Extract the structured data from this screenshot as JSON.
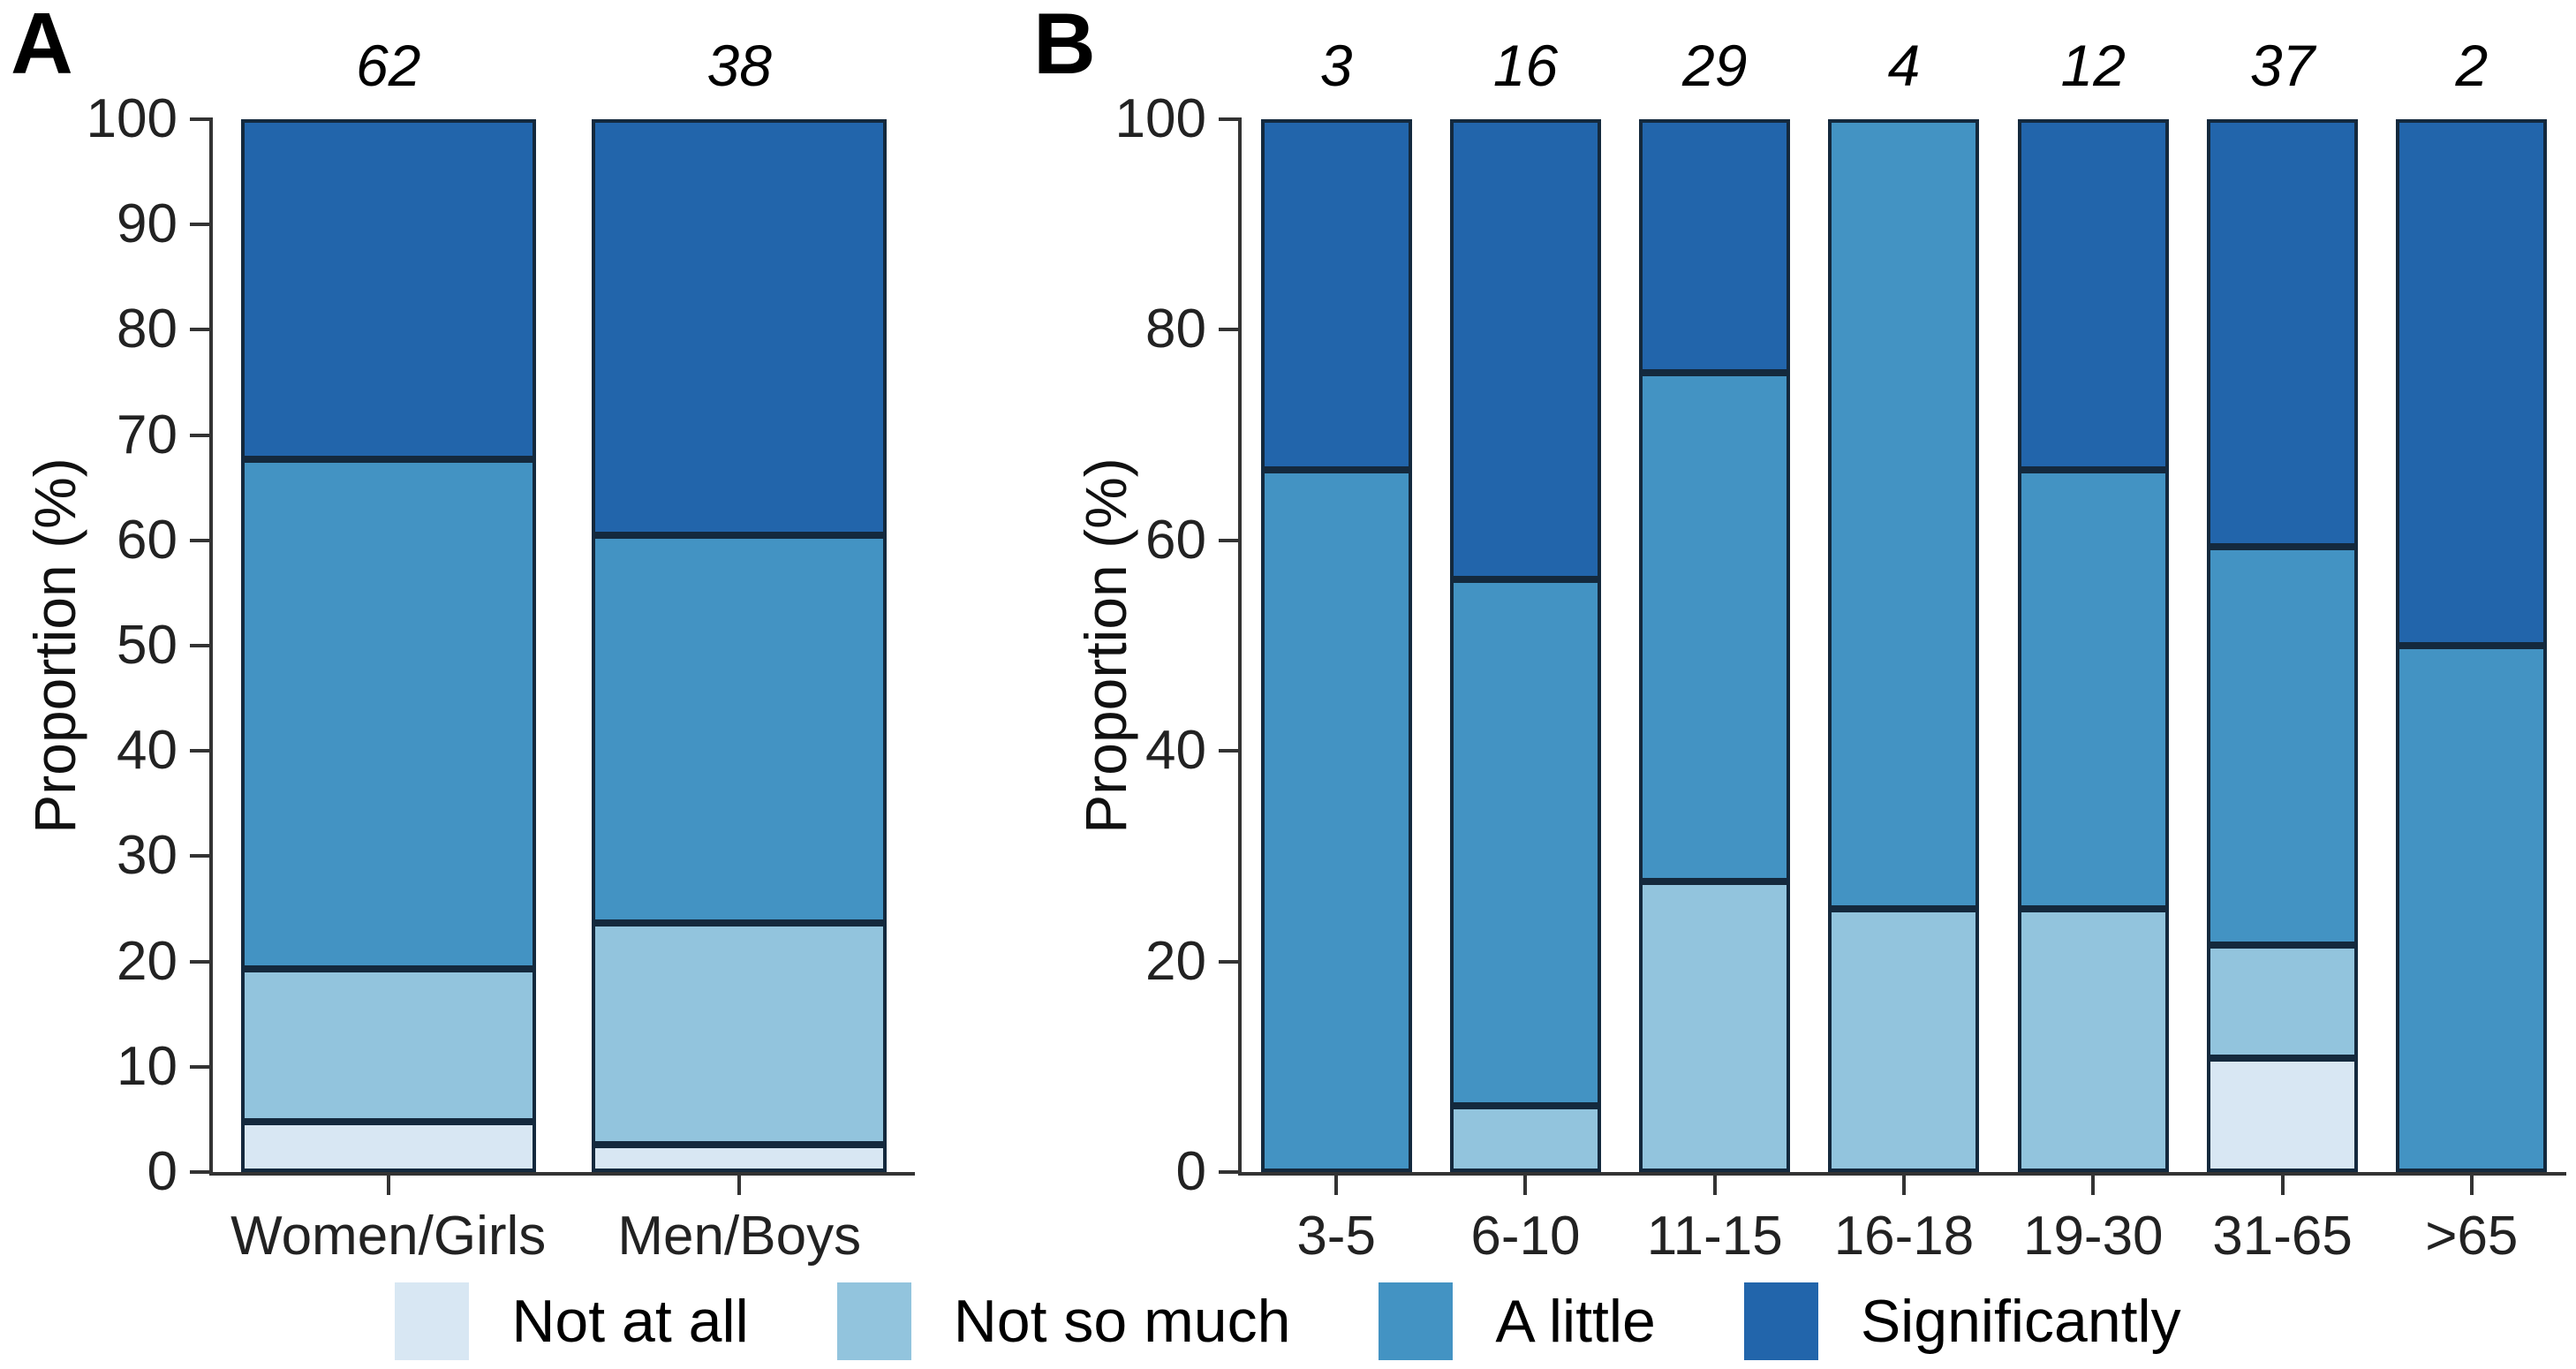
{
  "figure": {
    "background": "#ffffff"
  },
  "colors": {
    "segment_edge": "#14293d",
    "axis": "#333333",
    "not_at_all": "#d8e7f3",
    "not_so_much": "#92c4dd",
    "a_little": "#4393c3",
    "significantly": "#2265ab"
  },
  "legend": {
    "entries": [
      {
        "label": "Not at all",
        "color": "#d8e7f3"
      },
      {
        "label": "Not so much",
        "color": "#92c4dd"
      },
      {
        "label": "A little",
        "color": "#4393c3"
      },
      {
        "label": "Significantly",
        "color": "#2265ab"
      }
    ]
  },
  "chart_data": [
    {
      "type": "bar",
      "subtype": "stacked-percent",
      "panel_label": "A",
      "ylabel": "Proportion (%)",
      "ylim": [
        0,
        100
      ],
      "yticks": [
        0,
        10,
        20,
        30,
        40,
        50,
        60,
        70,
        80,
        90,
        100
      ],
      "grid": false,
      "legend_position": "bottom",
      "categories": [
        "Women/Girls",
        "Men/Boys"
      ],
      "n_labels": [
        "62",
        "38"
      ],
      "series": [
        {
          "name": "Not at all",
          "color": "#d8e7f3",
          "values": [
            4.8,
            2.6
          ]
        },
        {
          "name": "Not so much",
          "color": "#92c4dd",
          "values": [
            14.5,
            21.1
          ]
        },
        {
          "name": "A little",
          "color": "#4393c3",
          "values": [
            48.4,
            36.8
          ]
        },
        {
          "name": "Significantly",
          "color": "#2265ab",
          "values": [
            32.3,
            39.5
          ]
        }
      ]
    },
    {
      "type": "bar",
      "subtype": "stacked-percent",
      "panel_label": "B",
      "ylabel": "Proportion (%)",
      "ylim": [
        0,
        100
      ],
      "yticks": [
        0,
        20,
        40,
        60,
        80,
        100
      ],
      "grid": false,
      "legend_position": "bottom",
      "categories": [
        "3-5",
        "6-10",
        "11-15",
        "16-18",
        "19-30",
        "31-65",
        ">65"
      ],
      "n_labels": [
        "3",
        "16",
        "29",
        "4",
        "12",
        "37",
        "2"
      ],
      "series": [
        {
          "name": "Not at all",
          "color": "#d8e7f3",
          "values": [
            0,
            0,
            0,
            0,
            0,
            10.8,
            0
          ]
        },
        {
          "name": "Not so much",
          "color": "#92c4dd",
          "values": [
            0,
            6.3,
            27.6,
            25,
            25,
            10.8,
            0
          ]
        },
        {
          "name": "A little",
          "color": "#4393c3",
          "values": [
            66.7,
            50,
            48.3,
            75,
            41.7,
            37.8,
            50
          ]
        },
        {
          "name": "Significantly",
          "color": "#2265ab",
          "values": [
            33.3,
            43.7,
            24.1,
            0,
            33.3,
            40.6,
            50
          ]
        }
      ]
    }
  ]
}
